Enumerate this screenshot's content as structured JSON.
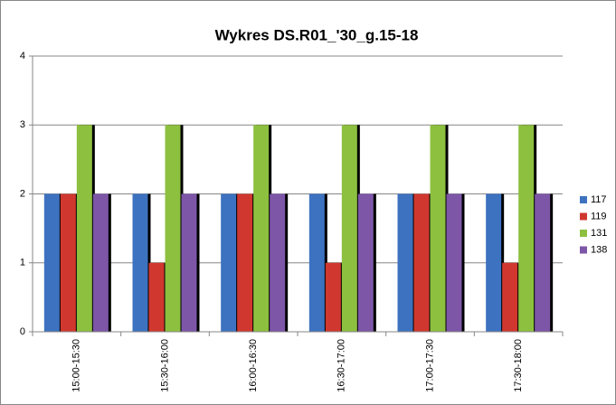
{
  "chart_data": {
    "type": "bar",
    "title": "Wykres DS.R01_'30_g.15-18",
    "categories": [
      "15:00-15:30",
      "15:30-16:00",
      "16:00-16:30",
      "16:30-17:00",
      "17:00-17:30",
      "17:30-18:00"
    ],
    "series": [
      {
        "name": "117",
        "color": "#3d72c0",
        "values": [
          2,
          2,
          2,
          2,
          2,
          2
        ]
      },
      {
        "name": "119",
        "color": "#d0382f",
        "values": [
          2,
          1,
          2,
          1,
          2,
          1
        ]
      },
      {
        "name": "131",
        "color": "#8dc03f",
        "values": [
          3,
          3,
          3,
          3,
          3,
          3
        ]
      },
      {
        "name": "138",
        "color": "#7d56a8",
        "values": [
          2,
          2,
          2,
          2,
          2,
          2
        ]
      }
    ],
    "ylim": [
      0,
      4
    ],
    "yticks": [
      0,
      1,
      2,
      3,
      4
    ],
    "grid": true,
    "legend": "right"
  }
}
